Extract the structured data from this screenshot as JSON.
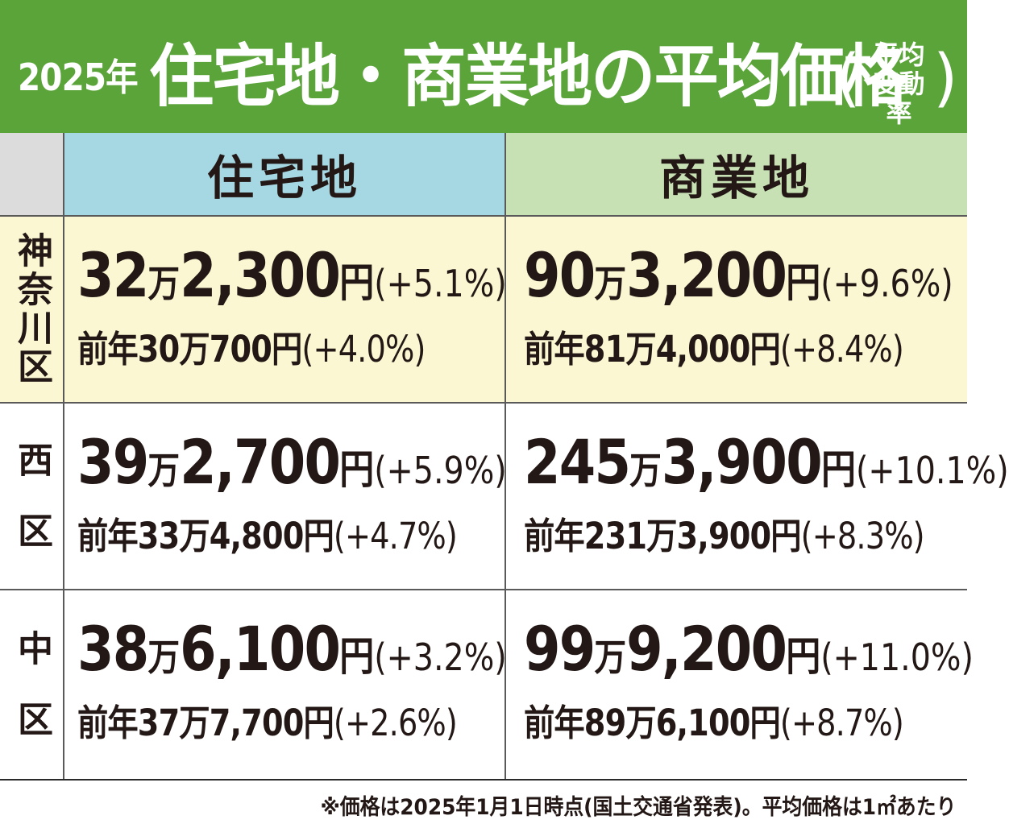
{
  "header": {
    "year": "2025年",
    "title": "住宅地・商業地の平均価格",
    "paren_open": "(",
    "paren_close": ")",
    "note_line1": "平均",
    "note_line2": "変動率"
  },
  "columns": {
    "residential": "住宅地",
    "commercial": "商業地"
  },
  "rows": [
    {
      "district": "神奈川区",
      "residential": {
        "man": "32",
        "man_unit": "万",
        "rest": "2,300",
        "yen": "円",
        "change": "(+5.1%)",
        "prev": "前年30万700円",
        "prev_change": "(+4.0%)"
      },
      "commercial": {
        "man": "90",
        "man_unit": "万",
        "rest": "3,200",
        "yen": "円",
        "change": "(+9.6%)",
        "prev": "前年81万4,000円",
        "prev_change": "(+8.4%)"
      }
    },
    {
      "district": "西区",
      "residential": {
        "man": "39",
        "man_unit": "万",
        "rest": "2,700",
        "yen": "円",
        "change": "(+5.9%)",
        "prev": "前年33万4,800円",
        "prev_change": "(+4.7%)"
      },
      "commercial": {
        "man": "245",
        "man_unit": "万",
        "rest": "3,900",
        "yen": "円",
        "change": "(+10.1%)",
        "prev": "前年231万3,900円",
        "prev_change": "(+8.3%)"
      }
    },
    {
      "district": "中区",
      "residential": {
        "man": "38",
        "man_unit": "万",
        "rest": "6,100",
        "yen": "円",
        "change": "(+3.2%)",
        "prev": "前年37万7,700円",
        "prev_change": "(+2.6%)"
      },
      "commercial": {
        "man": "99",
        "man_unit": "万",
        "rest": "9,200",
        "yen": "円",
        "change": "(+11.0%)",
        "prev": "前年89万6,100円",
        "prev_change": "(+8.7%)"
      }
    }
  ],
  "footnote": "※価格は2025年1月1日時点(国土交通省発表)。平均価格は1㎡あたり",
  "colors": {
    "header_green": "#5aa43a",
    "residential_head": "#a6d8e3",
    "commercial_head": "#c7e0b4",
    "highlight_row": "#fbf7d2"
  }
}
